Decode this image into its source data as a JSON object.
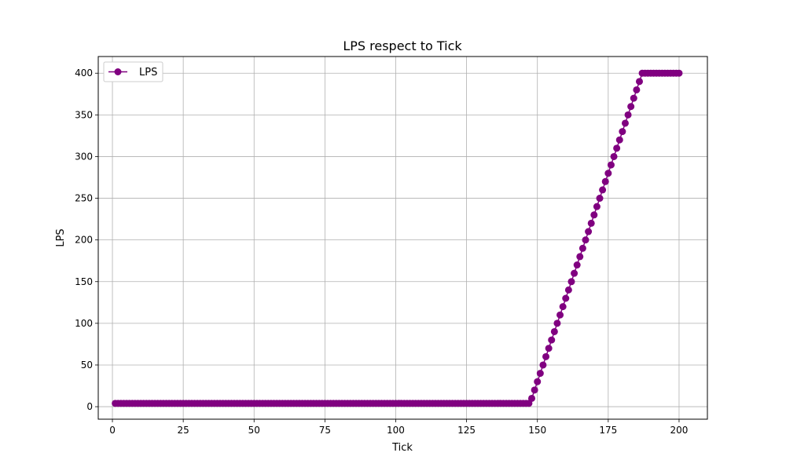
{
  "chart_data": {
    "type": "line",
    "title": "LPS respect to Tick",
    "xlabel": "Tick",
    "ylabel": "LPS",
    "xlim": [
      -5,
      210
    ],
    "ylim": [
      -15,
      420
    ],
    "xticks": [
      0,
      25,
      50,
      75,
      100,
      125,
      150,
      175,
      200
    ],
    "yticks": [
      0,
      50,
      100,
      150,
      200,
      250,
      300,
      350,
      400
    ],
    "xtick_labels": [
      "0",
      "25",
      "50",
      "75",
      "100",
      "125",
      "150",
      "175",
      "200"
    ],
    "ytick_labels": [
      "0",
      "50",
      "100",
      "150",
      "200",
      "250",
      "300",
      "350",
      "400"
    ],
    "grid": true,
    "legend_position": "top-left",
    "series": [
      {
        "name": "LPS",
        "color": "#800080",
        "marker": "circle",
        "x": [
          1,
          2,
          3,
          4,
          5,
          6,
          7,
          8,
          9,
          10,
          11,
          12,
          13,
          14,
          15,
          16,
          17,
          18,
          19,
          20,
          21,
          22,
          23,
          24,
          25,
          26,
          27,
          28,
          29,
          30,
          31,
          32,
          33,
          34,
          35,
          36,
          37,
          38,
          39,
          40,
          41,
          42,
          43,
          44,
          45,
          46,
          47,
          48,
          49,
          50,
          51,
          52,
          53,
          54,
          55,
          56,
          57,
          58,
          59,
          60,
          61,
          62,
          63,
          64,
          65,
          66,
          67,
          68,
          69,
          70,
          71,
          72,
          73,
          74,
          75,
          76,
          77,
          78,
          79,
          80,
          81,
          82,
          83,
          84,
          85,
          86,
          87,
          88,
          89,
          90,
          91,
          92,
          93,
          94,
          95,
          96,
          97,
          98,
          99,
          100,
          101,
          102,
          103,
          104,
          105,
          106,
          107,
          108,
          109,
          110,
          111,
          112,
          113,
          114,
          115,
          116,
          117,
          118,
          119,
          120,
          121,
          122,
          123,
          124,
          125,
          126,
          127,
          128,
          129,
          130,
          131,
          132,
          133,
          134,
          135,
          136,
          137,
          138,
          139,
          140,
          141,
          142,
          143,
          144,
          145,
          146,
          147,
          148,
          149,
          150,
          151,
          152,
          153,
          154,
          155,
          156,
          157,
          158,
          159,
          160,
          161,
          162,
          163,
          164,
          165,
          166,
          167,
          168,
          169,
          170,
          171,
          172,
          173,
          174,
          175,
          176,
          177,
          178,
          179,
          180,
          181,
          182,
          183,
          184,
          185,
          186,
          187,
          188,
          189,
          190,
          191,
          192,
          193,
          194,
          195,
          196,
          197,
          198,
          199,
          200
        ],
        "y": [
          4,
          4,
          4,
          4,
          4,
          4,
          4,
          4,
          4,
          4,
          4,
          4,
          4,
          4,
          4,
          4,
          4,
          4,
          4,
          4,
          4,
          4,
          4,
          4,
          4,
          4,
          4,
          4,
          4,
          4,
          4,
          4,
          4,
          4,
          4,
          4,
          4,
          4,
          4,
          4,
          4,
          4,
          4,
          4,
          4,
          4,
          4,
          4,
          4,
          4,
          4,
          4,
          4,
          4,
          4,
          4,
          4,
          4,
          4,
          4,
          4,
          4,
          4,
          4,
          4,
          4,
          4,
          4,
          4,
          4,
          4,
          4,
          4,
          4,
          4,
          4,
          4,
          4,
          4,
          4,
          4,
          4,
          4,
          4,
          4,
          4,
          4,
          4,
          4,
          4,
          4,
          4,
          4,
          4,
          4,
          4,
          4,
          4,
          4,
          4,
          4,
          4,
          4,
          4,
          4,
          4,
          4,
          4,
          4,
          4,
          4,
          4,
          4,
          4,
          4,
          4,
          4,
          4,
          4,
          4,
          4,
          4,
          4,
          4,
          4,
          4,
          4,
          4,
          4,
          4,
          4,
          4,
          4,
          4,
          4,
          4,
          4,
          4,
          4,
          4,
          4,
          4,
          4,
          4,
          4,
          4,
          4,
          10,
          20,
          30,
          40,
          50,
          60,
          70,
          80,
          90,
          100,
          110,
          120,
          130,
          140,
          150,
          160,
          170,
          180,
          190,
          200,
          210,
          220,
          230,
          240,
          250,
          260,
          270,
          280,
          290,
          300,
          310,
          320,
          330,
          340,
          350,
          360,
          370,
          380,
          390,
          400,
          400,
          400,
          400,
          400,
          400,
          400,
          400,
          400,
          400,
          400,
          400,
          400,
          400
        ]
      }
    ]
  }
}
